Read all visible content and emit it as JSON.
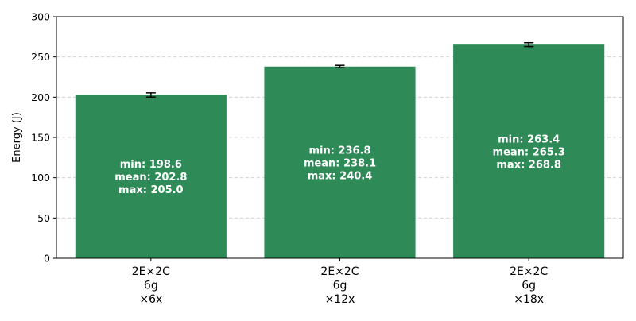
{
  "chart_data": {
    "type": "bar",
    "title": "",
    "xlabel": "",
    "ylabel": "Energy (J)",
    "ylim": [
      0,
      300
    ],
    "yticks": [
      "0",
      "50",
      "100",
      "150",
      "200",
      "250",
      "300"
    ],
    "grid": "horizontal dashed",
    "categories": [
      [
        "2E×2C",
        "6g",
        "×6x"
      ],
      [
        "2E×2C",
        "6g",
        "×12x"
      ],
      [
        "2E×2C",
        "6g",
        "×18x"
      ]
    ],
    "series": [
      {
        "values": [
          202.8,
          238.1,
          265.3
        ],
        "min": [
          198.6,
          236.8,
          263.4
        ],
        "max": [
          205.0,
          240.4,
          268.8
        ],
        "error": [
          2.6,
          1.5,
          2.4
        ],
        "color": "#2e8b57"
      }
    ],
    "bar_labels": [
      [
        "min: 198.6",
        "mean: 202.8",
        "max: 205.0"
      ],
      [
        "min: 236.8",
        "mean: 238.1",
        "max: 240.4"
      ],
      [
        "min: 263.4",
        "mean: 265.3",
        "max: 268.8"
      ]
    ]
  }
}
